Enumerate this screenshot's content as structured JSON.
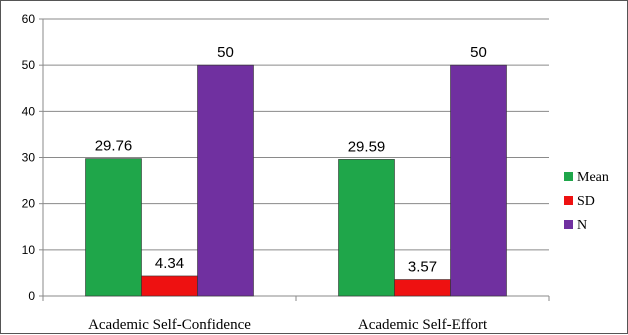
{
  "chart_data": {
    "type": "bar",
    "categories": [
      "Academic Self-Confidence",
      "Academic Self-Effort"
    ],
    "series": [
      {
        "name": "Mean",
        "values": [
          29.76,
          29.59
        ],
        "color": "#1fa64a"
      },
      {
        "name": "SD",
        "values": [
          4.34,
          3.57
        ],
        "color": "#ee1111"
      },
      {
        "name": "N",
        "values": [
          50,
          50
        ],
        "color": "#7030a0"
      }
    ],
    "data_labels": [
      [
        "29.76",
        "29.59"
      ],
      [
        "4.34",
        "3.57"
      ],
      [
        "50",
        "50"
      ]
    ],
    "ylim": [
      0,
      60
    ],
    "yticks": [
      "0",
      "10",
      "20",
      "30",
      "40",
      "50",
      "60"
    ],
    "grid": true,
    "legend_position": "right",
    "title": "",
    "xlabel": "",
    "ylabel": ""
  }
}
